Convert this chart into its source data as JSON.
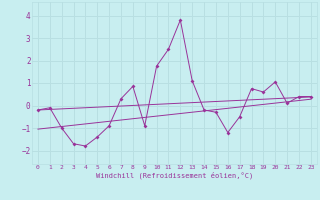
{
  "xlabel": "Windchill (Refroidissement éolien,°C)",
  "background_color": "#c8eef0",
  "grid_color": "#b8dfe2",
  "line_color": "#993399",
  "x_ticks": [
    0,
    1,
    2,
    3,
    4,
    5,
    6,
    7,
    8,
    9,
    10,
    11,
    12,
    13,
    14,
    15,
    16,
    17,
    18,
    19,
    20,
    21,
    22,
    23
  ],
  "y_ticks": [
    -2,
    -1,
    0,
    1,
    2,
    3,
    4
  ],
  "xlim": [
    -0.5,
    23.5
  ],
  "ylim": [
    -2.6,
    4.6
  ],
  "series": [
    [
      0,
      -0.2
    ],
    [
      1,
      -0.1
    ],
    [
      2,
      -1.0
    ],
    [
      3,
      -1.7
    ],
    [
      4,
      -1.8
    ],
    [
      5,
      -1.4
    ],
    [
      6,
      -0.9
    ],
    [
      7,
      0.3
    ],
    [
      8,
      0.85
    ],
    [
      9,
      -0.9
    ],
    [
      10,
      1.75
    ],
    [
      11,
      2.5
    ],
    [
      12,
      3.8
    ],
    [
      13,
      1.1
    ],
    [
      14,
      -0.2
    ],
    [
      15,
      -0.3
    ],
    [
      16,
      -1.2
    ],
    [
      17,
      -0.5
    ],
    [
      18,
      0.75
    ],
    [
      19,
      0.6
    ],
    [
      20,
      1.05
    ],
    [
      21,
      0.1
    ],
    [
      22,
      0.4
    ],
    [
      23,
      0.4
    ]
  ],
  "linear_series1": [
    [
      0,
      -0.2
    ],
    [
      23,
      0.38
    ]
  ],
  "linear_series2": [
    [
      0,
      -1.05
    ],
    [
      23,
      0.28
    ]
  ]
}
